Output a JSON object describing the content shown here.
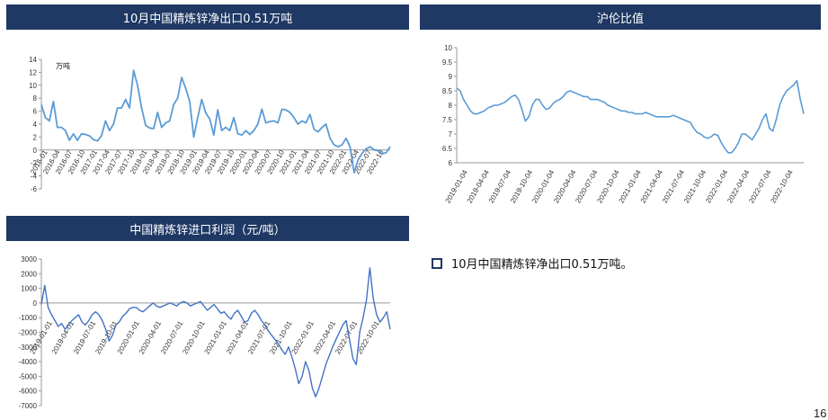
{
  "panels": {
    "export": {
      "title": "10月中国精炼锌净出口0.51万吨"
    },
    "ratio": {
      "title": "沪伦比值"
    },
    "profit": {
      "title": "中国精炼锌进口利润（元/吨）"
    }
  },
  "bullet_text": "10月中国精炼锌净出口0.51万吨。",
  "page_number": "16",
  "colors": {
    "header": "#1f3864",
    "line_light": "#5b9bd5",
    "line_dark": "#4472c4"
  },
  "chart_data": [
    {
      "type": "line",
      "id": "export",
      "unit": "万吨",
      "ylim": [
        -6,
        14
      ],
      "yticks": [
        -6,
        -4,
        -2,
        0,
        2,
        4,
        6,
        8,
        10,
        12,
        14
      ],
      "xticks": [
        "2016-01",
        "2016-04",
        "2016-07",
        "2016-10",
        "2017-01",
        "2017-04",
        "2017-07",
        "2017-10",
        "2018-01",
        "2018-04",
        "2018-07",
        "2018-10",
        "2019-01",
        "2019-04",
        "2019-07",
        "2019-10",
        "2020-01",
        "2020-04",
        "2020-07",
        "2020-10",
        "2021-01",
        "2021-04",
        "2021-07",
        "2021-10",
        "2022-01",
        "2022-04",
        "2022-07",
        "2022-10"
      ],
      "values": [
        7,
        5,
        4.5,
        7.5,
        3.5,
        3.5,
        3,
        1.5,
        2.5,
        1.5,
        2.5,
        2.4,
        2.2,
        1.6,
        1.4,
        2.2,
        4.5,
        3,
        4,
        6.5,
        6.5,
        7.8,
        6.5,
        12.3,
        10,
        6.5,
        3.8,
        3.4,
        3.3,
        5.8,
        3.5,
        4.2,
        4.5,
        7,
        8,
        11.2,
        9.5,
        7.5,
        2,
        5,
        7.8,
        5.7,
        4.8,
        2.3,
        6.2,
        3,
        3.5,
        3,
        5,
        2.5,
        2.3,
        3,
        2.4,
        3,
        4,
        6.3,
        4.2,
        4.4,
        4.5,
        4.2,
        6.3,
        6.2,
        5.8,
        5,
        4,
        4.5,
        4.2,
        5.5,
        3.2,
        2.8,
        3.5,
        4,
        1.8,
        0.8,
        0.5,
        0.8,
        1.8,
        0.5,
        -3.5,
        -1.5,
        -0.5,
        0.2,
        0.5,
        0,
        -0.1,
        -0.6,
        -0.4,
        0.51
      ]
    },
    {
      "type": "line",
      "id": "ratio",
      "ylim": [
        6,
        10
      ],
      "yticks": [
        6,
        6.5,
        7,
        7.5,
        8,
        8.5,
        9,
        9.5,
        10
      ],
      "xticks": [
        "2019-01-04",
        "2019-04-04",
        "2019-07-04",
        "2019-10-04",
        "2020-01-04",
        "2020-04-04",
        "2020-07-04",
        "2020-10-04",
        "2021-01-04",
        "2021-04-04",
        "2021-07-04",
        "2021-10-04",
        "2022-01-04",
        "2022-04-04",
        "2022-07-04",
        "2022-10-04"
      ],
      "values": [
        8.6,
        8.5,
        8.2,
        8.0,
        7.8,
        7.7,
        7.7,
        7.75,
        7.8,
        7.9,
        7.95,
        8.0,
        8.0,
        8.05,
        8.1,
        8.2,
        8.3,
        8.35,
        8.2,
        7.85,
        7.45,
        7.6,
        8.0,
        8.2,
        8.2,
        8.0,
        7.85,
        7.9,
        8.05,
        8.15,
        8.2,
        8.3,
        8.45,
        8.5,
        8.45,
        8.4,
        8.35,
        8.3,
        8.3,
        8.2,
        8.2,
        8.2,
        8.15,
        8.1,
        8.0,
        7.95,
        7.9,
        7.85,
        7.8,
        7.8,
        7.75,
        7.75,
        7.7,
        7.7,
        7.7,
        7.75,
        7.7,
        7.65,
        7.6,
        7.6,
        7.6,
        7.6,
        7.6,
        7.65,
        7.6,
        7.55,
        7.5,
        7.45,
        7.4,
        7.2,
        7.05,
        7.0,
        6.9,
        6.85,
        6.9,
        7.0,
        6.95,
        6.7,
        6.5,
        6.35,
        6.35,
        6.5,
        6.7,
        7.0,
        7.0,
        6.9,
        6.8,
        7.0,
        7.2,
        7.5,
        7.7,
        7.2,
        7.1,
        7.5,
        8.0,
        8.3,
        8.5,
        8.6,
        8.7,
        8.85,
        8.2,
        7.7
      ]
    },
    {
      "type": "line",
      "id": "profit",
      "ylim": [
        -7000,
        3000
      ],
      "yticks": [
        -7000,
        -6000,
        -5000,
        -4000,
        -3000,
        -2000,
        -1000,
        0,
        1000,
        2000,
        3000
      ],
      "xticks": [
        "2019-01-01",
        "2019-04-01",
        "2019-07-01",
        "2019-10-01",
        "2020-01-01",
        "2020-04-01",
        "2020-07-01",
        "2020-10-01",
        "2021-01-01",
        "2021-04-01",
        "2021-07-01",
        "2021-10-01",
        "2022-01-01",
        "2022-04-01",
        "2022-07-01",
        "2022-10-01"
      ],
      "values": [
        -100,
        1200,
        -300,
        -800,
        -1200,
        -1600,
        -1400,
        -1800,
        -1500,
        -1200,
        -1000,
        -800,
        -1300,
        -1500,
        -1200,
        -800,
        -600,
        -800,
        -1200,
        -1800,
        -2600,
        -2200,
        -1500,
        -1300,
        -900,
        -700,
        -400,
        -300,
        -300,
        -500,
        -600,
        -400,
        -200,
        0,
        -200,
        -300,
        -200,
        -100,
        0,
        -100,
        -200,
        0,
        100,
        0,
        -200,
        -100,
        0,
        100,
        -200,
        -500,
        -300,
        -100,
        -400,
        -700,
        -600,
        -900,
        -1100,
        -700,
        -500,
        -900,
        -1300,
        -1200,
        -700,
        -500,
        -800,
        -1200,
        -1500,
        -1900,
        -2200,
        -2500,
        -2800,
        -3200,
        -3500,
        -3000,
        -3700,
        -4500,
        -5500,
        -5000,
        -4000,
        -4600,
        -5800,
        -6400,
        -5800,
        -5000,
        -4200,
        -3600,
        -3000,
        -2500,
        -2000,
        -1500,
        -1200,
        -2500,
        -3800,
        -4200,
        -2000,
        -1000,
        200,
        2400,
        300,
        -800,
        -1300,
        -1000,
        -600,
        -1800
      ]
    }
  ]
}
